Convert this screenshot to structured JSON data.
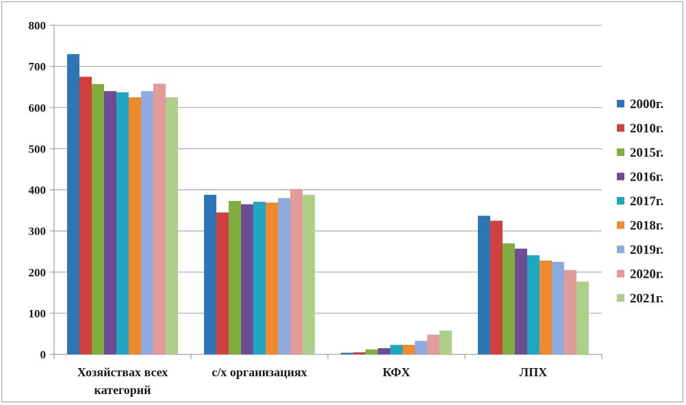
{
  "chart_data": {
    "type": "bar",
    "title": "",
    "xlabel": "",
    "ylabel": "",
    "ylim": [
      0,
      800
    ],
    "yticks": [
      "0",
      "100",
      "200",
      "300",
      "400",
      "500",
      "600",
      "700",
      "800"
    ],
    "grid": true,
    "legend_position": "right",
    "categories": [
      [
        "Хозяйствах всех",
        "категорий"
      ],
      [
        "с/х организациях"
      ],
      [
        "КФХ"
      ],
      [
        "ЛПХ"
      ]
    ],
    "series": [
      {
        "name": "2000г.",
        "color": "#2E75B6",
        "values": [
          730,
          388,
          4,
          337
        ]
      },
      {
        "name": "2010г.",
        "color": "#D0403C",
        "values": [
          675,
          345,
          5,
          325
        ]
      },
      {
        "name": "2015г.",
        "color": "#7FAE3E",
        "values": [
          657,
          373,
          12,
          270
        ]
      },
      {
        "name": "2016г.",
        "color": "#6C4C92",
        "values": [
          640,
          365,
          15,
          257
        ]
      },
      {
        "name": "2017г.",
        "color": "#1FA6C2",
        "values": [
          637,
          371,
          23,
          241
        ]
      },
      {
        "name": "2018г.",
        "color": "#F0892E",
        "values": [
          625,
          369,
          23,
          228
        ]
      },
      {
        "name": "2019г.",
        "color": "#8FAADC",
        "values": [
          640,
          380,
          33,
          225
        ]
      },
      {
        "name": "2020г.",
        "color": "#E29A9A",
        "values": [
          658,
          402,
          48,
          205
        ]
      },
      {
        "name": "2021г.",
        "color": "#ADCF8A",
        "values": [
          625,
          388,
          58,
          177
        ]
      }
    ]
  }
}
